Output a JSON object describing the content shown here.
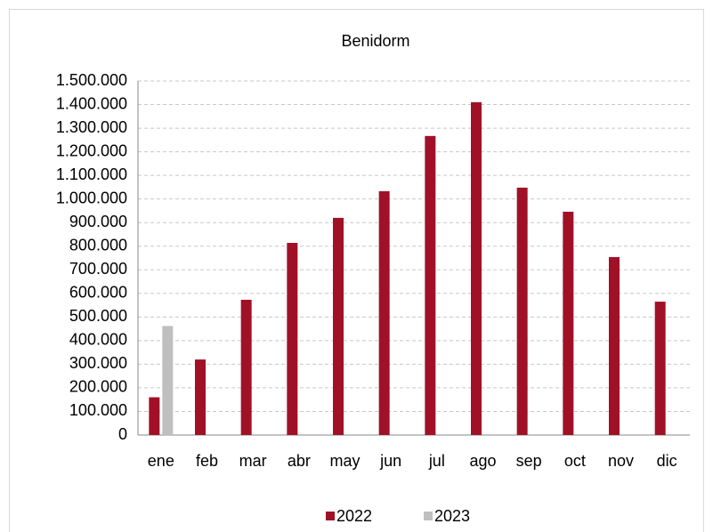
{
  "chart_data": {
    "type": "bar",
    "title": "Benidorm",
    "categories": [
      "ene",
      "feb",
      "mar",
      "abr",
      "may",
      "jun",
      "jul",
      "ago",
      "sep",
      "oct",
      "nov",
      "dic"
    ],
    "series": [
      {
        "name": "2022",
        "color": "#a01127",
        "values": [
          160000,
          320000,
          573000,
          814000,
          920000,
          1033000,
          1267000,
          1410000,
          1048000,
          946000,
          754000,
          565000
        ]
      },
      {
        "name": "2023",
        "color": "#bfbfbf",
        "values": [
          462000,
          null,
          null,
          null,
          null,
          null,
          null,
          null,
          null,
          null,
          null,
          null
        ]
      }
    ],
    "ylim": [
      0,
      1500000
    ],
    "yticks": [
      0,
      {
        "value": 100000,
        "label": "100.000"
      },
      {
        "value": 200000,
        "label": "200.000"
      },
      {
        "value": 300000,
        "label": "300.000"
      },
      {
        "value": 400000,
        "label": "400.000"
      },
      {
        "value": 500000,
        "label": "500.000"
      },
      {
        "value": 600000,
        "label": "600.000"
      },
      {
        "value": 700000,
        "label": "700.000"
      },
      {
        "value": 800000,
        "label": "800.000"
      },
      {
        "value": 900000,
        "label": "900.000"
      },
      {
        "value": 1000000,
        "label": "1.000.000"
      },
      {
        "value": 1100000,
        "label": "1.100.000"
      },
      {
        "value": 1200000,
        "label": "1.200.000"
      },
      {
        "value": 1300000,
        "label": "1.300.000"
      },
      {
        "value": 1400000,
        "label": "1.400.000"
      },
      {
        "value": 1500000,
        "label": "1.500.000"
      }
    ],
    "grid": true,
    "legend": "bottom"
  }
}
